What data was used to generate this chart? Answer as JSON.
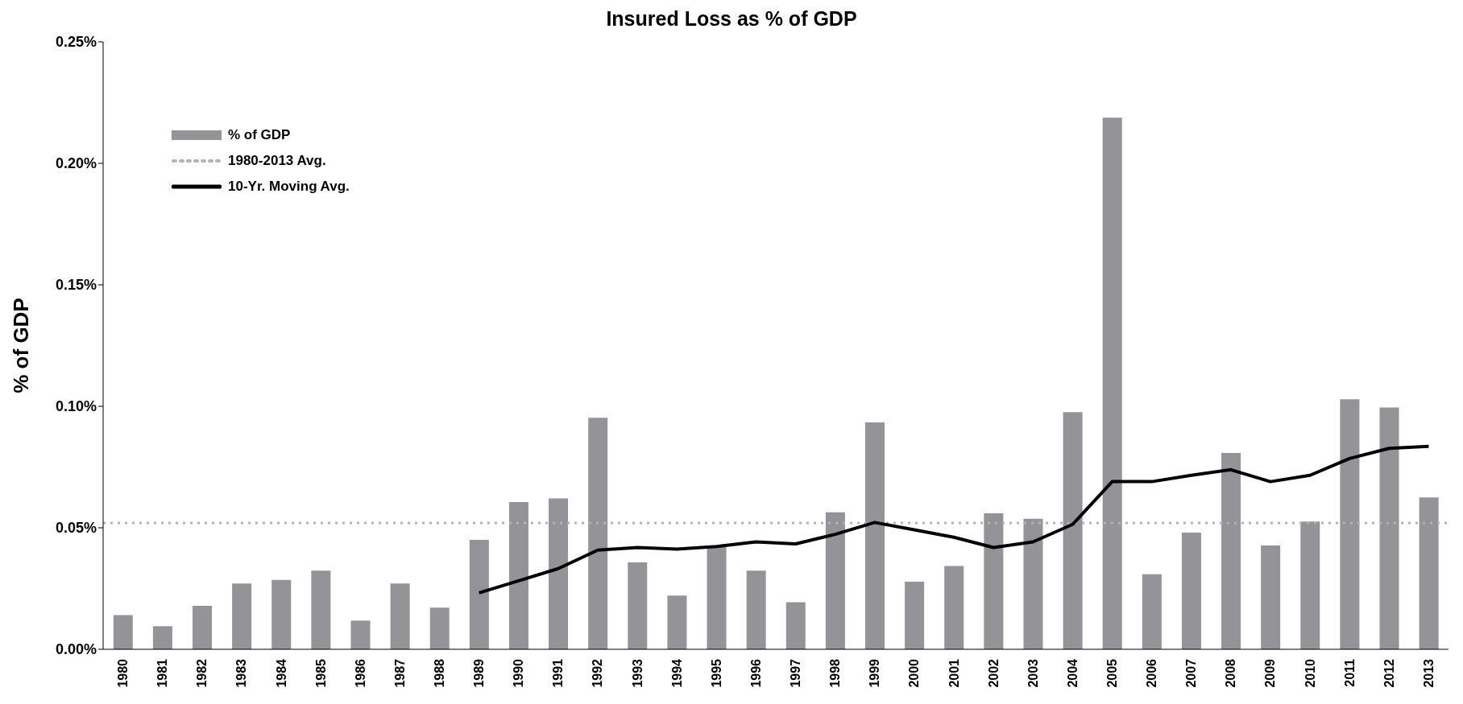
{
  "chart_data": {
    "type": "bar",
    "title": "Insured Loss as % of GDP",
    "ylabel": "% of GDP",
    "categories": [
      "1980",
      "1981",
      "1982",
      "1983",
      "1984",
      "1985",
      "1986",
      "1987",
      "1988",
      "1989",
      "1990",
      "1991",
      "1992",
      "1993",
      "1994",
      "1995",
      "1996",
      "1997",
      "1998",
      "1999",
      "2000",
      "2001",
      "2002",
      "2003",
      "2004",
      "2005",
      "2006",
      "2007",
      "2008",
      "2009",
      "2010",
      "2011",
      "2012",
      "2013"
    ],
    "series": [
      {
        "name": "% of GDP",
        "color": "#939398",
        "values": [
          0.0141,
          0.0095,
          0.0179,
          0.0271,
          0.0286,
          0.0324,
          0.0118,
          0.0271,
          0.0171,
          0.045,
          0.0606,
          0.0621,
          0.0953,
          0.0358,
          0.0221,
          0.0423,
          0.0324,
          0.0194,
          0.0564,
          0.0934,
          0.0278,
          0.0343,
          0.056,
          0.0537,
          0.0976,
          0.2188,
          0.0309,
          0.048,
          0.0808,
          0.0427,
          0.0526,
          0.1029,
          0.0995,
          0.0625
        ]
      },
      {
        "name": "10-Yr. Moving Avg.",
        "type": "line",
        "color": "#000000",
        "values": [
          null,
          null,
          null,
          null,
          null,
          null,
          null,
          null,
          null,
          0.0232,
          0.0282,
          0.0332,
          0.0408,
          0.0419,
          0.0412,
          0.0423,
          0.0442,
          0.0434,
          0.0473,
          0.0522,
          0.0492,
          0.0461,
          0.0419,
          0.0442,
          0.0514,
          0.069,
          0.069,
          0.0716,
          0.0739,
          0.069,
          0.0716,
          0.0785,
          0.0827,
          0.0835
        ]
      }
    ],
    "ref_lines": [
      {
        "axis": "y",
        "value": 0.052,
        "label": "1980-2013 Avg.",
        "color": "#b3b3b3",
        "line_style": "dotted"
      }
    ],
    "ylim": [
      0,
      0.25
    ],
    "yticks": [
      {
        "value": 0,
        "label": "0.00%"
      },
      {
        "value": 0.05,
        "label": "0.05%"
      },
      {
        "value": 0.1,
        "label": "0.10%"
      },
      {
        "value": 0.15,
        "label": "0.15%"
      },
      {
        "value": 0.2,
        "label": "0.20%"
      },
      {
        "value": 0.25,
        "label": "0.25%"
      }
    ],
    "legend": "top left",
    "marker": "none",
    "grid": false
  }
}
